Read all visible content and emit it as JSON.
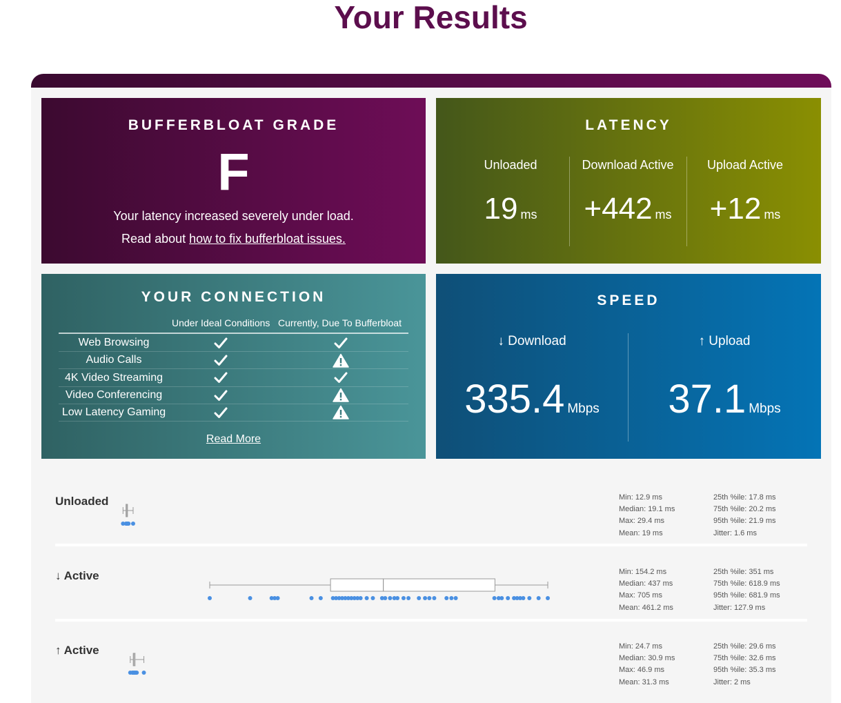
{
  "page": {
    "title": "Your Results"
  },
  "colors": {
    "title": "#5c0e4d",
    "dot": "#4a90e2",
    "box": "#999999"
  },
  "grade": {
    "title": "BUFFERBLOAT GRADE",
    "letter": "F",
    "message": "Your latency increased severely under load.",
    "read_prefix": "Read about",
    "read_link": "how to fix bufferbloat issues."
  },
  "latency": {
    "title": "LATENCY",
    "columns": [
      {
        "label": "Unloaded",
        "value": "19",
        "unit": "ms"
      },
      {
        "label": "Download Active",
        "value": "+442",
        "unit": "ms"
      },
      {
        "label": "Upload Active",
        "value": "+12",
        "unit": "ms"
      }
    ]
  },
  "connection": {
    "title": "YOUR CONNECTION",
    "col_ideal": "Under Ideal Conditions",
    "col_now": "Currently, Due To Bufferbloat",
    "rows": [
      {
        "name": "Web Browsing",
        "ideal": "check-icon",
        "now": "check-icon"
      },
      {
        "name": "Audio Calls",
        "ideal": "check-icon",
        "now": "warning-icon"
      },
      {
        "name": "4K Video Streaming",
        "ideal": "check-icon",
        "now": "check-icon"
      },
      {
        "name": "Video Conferencing",
        "ideal": "check-icon",
        "now": "warning-icon"
      },
      {
        "name": "Low Latency Gaming",
        "ideal": "check-icon",
        "now": "warning-icon"
      }
    ],
    "read_more": "Read More"
  },
  "speed": {
    "title": "SPEED",
    "download": {
      "label": "↓ Download",
      "value": "335.4",
      "unit": "Mbps"
    },
    "upload": {
      "label": "↑ Upload",
      "value": "37.1",
      "unit": "Mbps"
    }
  },
  "distributions": [
    {
      "label": "Unloaded",
      "stats_left": [
        "Min: 12.9 ms",
        "Median: 19.1 ms",
        "Max: 29.4 ms",
        "Mean: 19 ms"
      ],
      "stats_right": [
        "25th %ile: 17.8 ms",
        "75th %ile: 20.2 ms",
        "95th %ile: 21.9 ms",
        "Jitter: 1.6 ms"
      ]
    },
    {
      "label": "↓ Active",
      "stats_left": [
        "Min: 154.2 ms",
        "Median: 437 ms",
        "Max: 705 ms",
        "Mean: 461.2 ms"
      ],
      "stats_right": [
        "25th %ile: 351 ms",
        "75th %ile: 618.9 ms",
        "95th %ile: 681.9 ms",
        "Jitter: 127.9 ms"
      ]
    },
    {
      "label": "↑ Active",
      "stats_left": [
        "Min: 24.7 ms",
        "Median: 30.9 ms",
        "Max: 46.9 ms",
        "Mean: 31.3 ms"
      ],
      "stats_right": [
        "25th %ile: 29.6 ms",
        "75th %ile: 32.6 ms",
        "95th %ile: 35.3 ms",
        "Jitter: 2 ms"
      ]
    }
  ],
  "chart_data": {
    "type": "scatter",
    "x_unit": "ms",
    "xlim": [
      0,
      750
    ],
    "series": [
      {
        "values": [
          12.9,
          17.8,
          18.5,
          19.1,
          19.6,
          20.2,
          21.0,
          21.9,
          29.4
        ],
        "box": {
          "min": 12.9,
          "q1": 17.8,
          "median": 19.1,
          "q3": 20.2,
          "max": 29.4
        }
      },
      {
        "values": [
          154.2,
          220,
          255,
          260,
          265,
          320,
          335,
          355,
          360,
          365,
          370,
          375,
          380,
          385,
          390,
          395,
          400,
          410,
          420,
          435,
          440,
          448,
          455,
          460,
          470,
          478,
          495,
          505,
          512,
          520,
          540,
          548,
          555,
          618,
          625,
          630,
          640,
          650,
          655,
          660,
          665,
          675,
          690,
          705
        ],
        "box": {
          "min": 154.2,
          "q1": 351,
          "median": 437,
          "q3": 618.9,
          "max": 705
        }
      },
      {
        "values": [
          24.7,
          28.0,
          29.0,
          29.6,
          30.2,
          30.9,
          31.5,
          32.0,
          32.6,
          34.0,
          35.3,
          46.9
        ],
        "box": {
          "min": 24.7,
          "q1": 29.6,
          "median": 30.9,
          "q3": 32.6,
          "max": 46.9
        }
      }
    ]
  }
}
